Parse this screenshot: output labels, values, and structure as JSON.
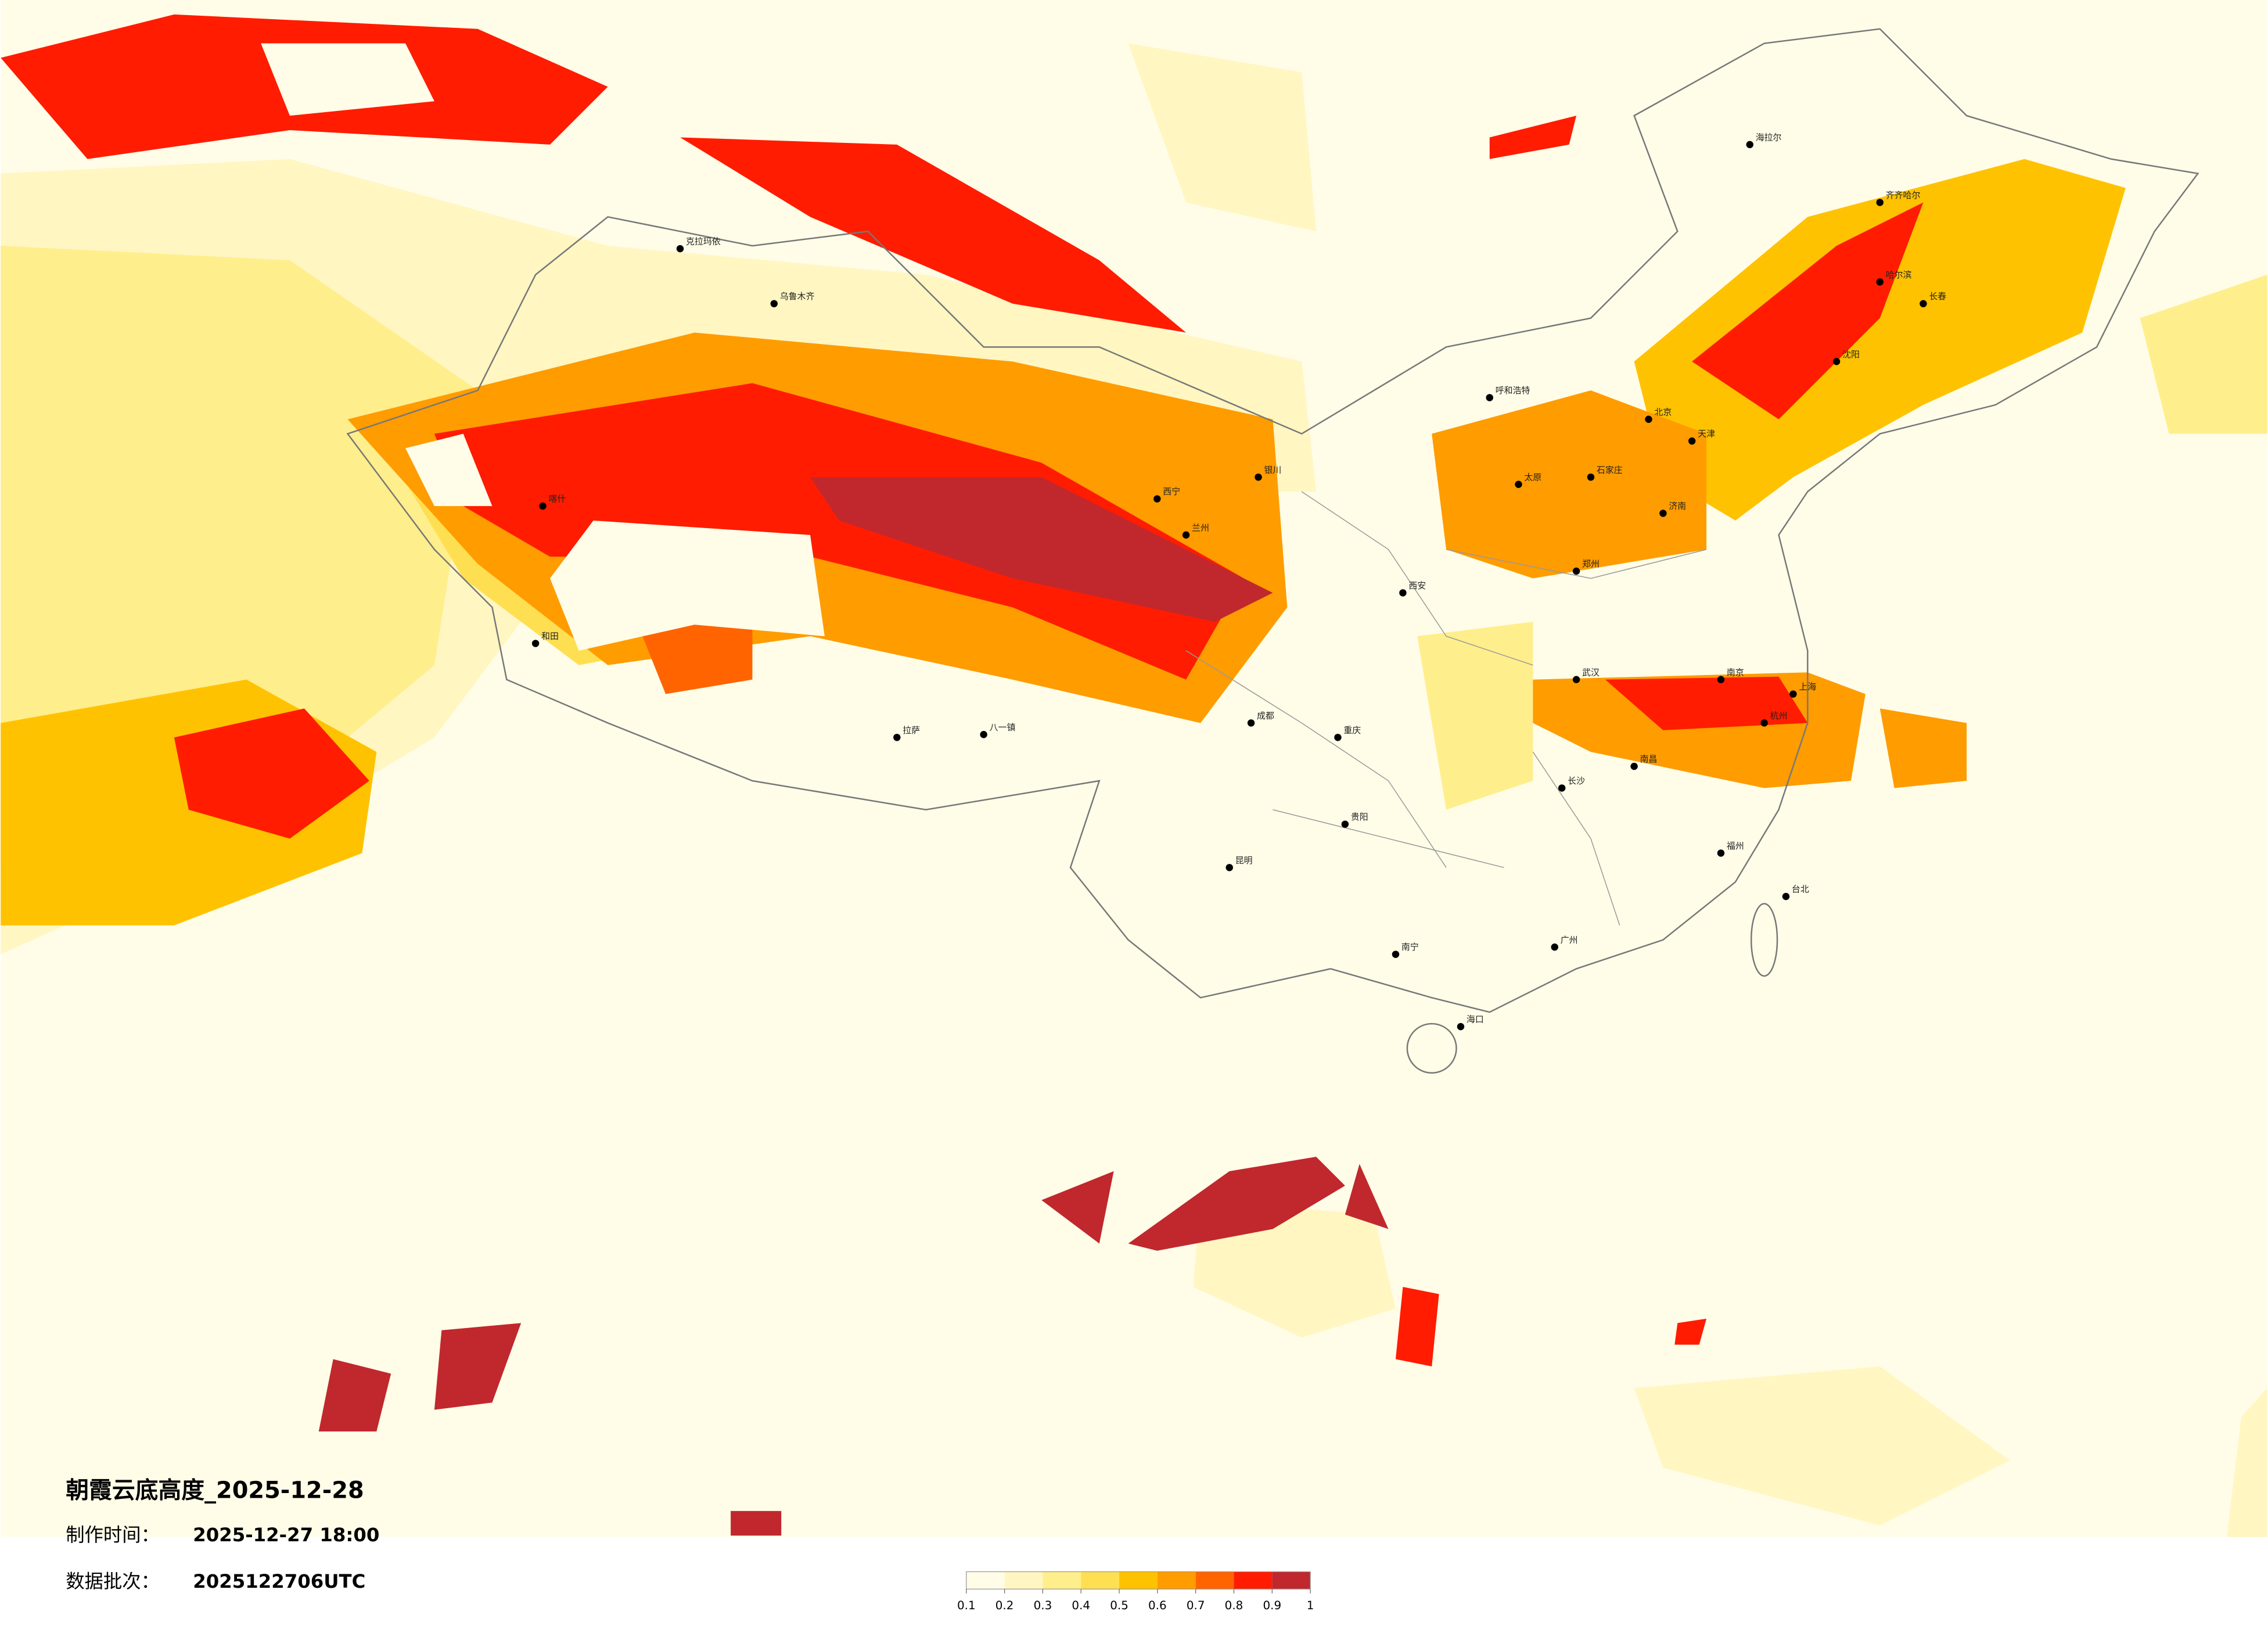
{
  "title": "朝霞云底高度_2025-12-28",
  "made_time_label": "制作时间：",
  "made_time": "2025-12-27 18:00",
  "batch_label": "数据批次：",
  "batch": "2025122706UTC",
  "colorbar": {
    "colors": [
      "#fffde8",
      "#fff6c2",
      "#ffee8c",
      "#ffdf52",
      "#ffc200",
      "#ff9c00",
      "#ff6400",
      "#ff1c00",
      "#c0282e"
    ],
    "ticks": [
      0.1,
      0.2,
      0.3,
      0.4,
      0.5,
      0.6,
      0.7,
      0.8,
      0.9,
      1
    ]
  },
  "cities": [
    "海拉尔",
    "齐齐哈尔",
    "哈尔滨",
    "长春",
    "沈阳",
    "北京",
    "天津",
    "石家庄",
    "太原",
    "呼和浩特",
    "济南",
    "郑州",
    "西安",
    "武汉",
    "南京",
    "上海",
    "杭州",
    "长沙",
    "南昌",
    "福州",
    "广州",
    "南宁",
    "贵阳",
    "昆明",
    "成都",
    "重庆",
    "兰州",
    "西宁",
    "银川",
    "乌鲁木齐",
    "克拉玛依",
    "喀什",
    "和田",
    "拉萨",
    "八一镇",
    "海口",
    "台北"
  ]
}
